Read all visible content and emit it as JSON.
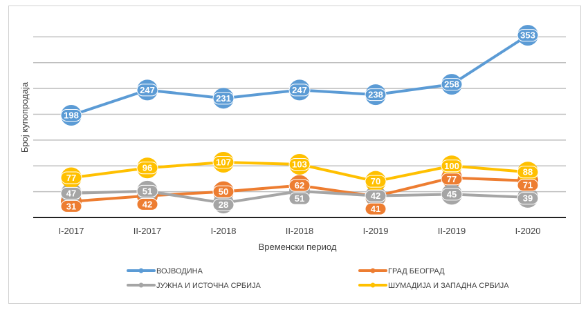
{
  "chart_data": {
    "type": "line",
    "categories": [
      "I-2017",
      "II-2017",
      "I-2018",
      "II-2018",
      "I-2019",
      "II-2019",
      "I-2020"
    ],
    "xlabel": "Временски период",
    "ylabel": "Број купопродаја",
    "ylim": [
      0,
      400
    ],
    "grid": true,
    "grid_step": 50,
    "legend_position": "bottom",
    "series": [
      {
        "name": "ВОЈВОДИНА",
        "color": "#5b9bd5",
        "values": [
          198,
          247,
          231,
          247,
          238,
          258,
          353
        ]
      },
      {
        "name": "ГРАД БЕОГРАД",
        "color": "#ed7d31",
        "values": [
          31,
          42,
          50,
          62,
          41,
          77,
          71
        ]
      },
      {
        "name": "ЈУЖНА И ИСТОЧНА СРБИЈА",
        "color": "#a5a5a5",
        "values": [
          47,
          51,
          28,
          51,
          42,
          45,
          39
        ]
      },
      {
        "name": "ШУМАДИЈА И ЗАПАДНА СРБИЈА",
        "color": "#ffc000",
        "values": [
          77,
          96,
          107,
          103,
          70,
          100,
          88
        ]
      }
    ]
  }
}
